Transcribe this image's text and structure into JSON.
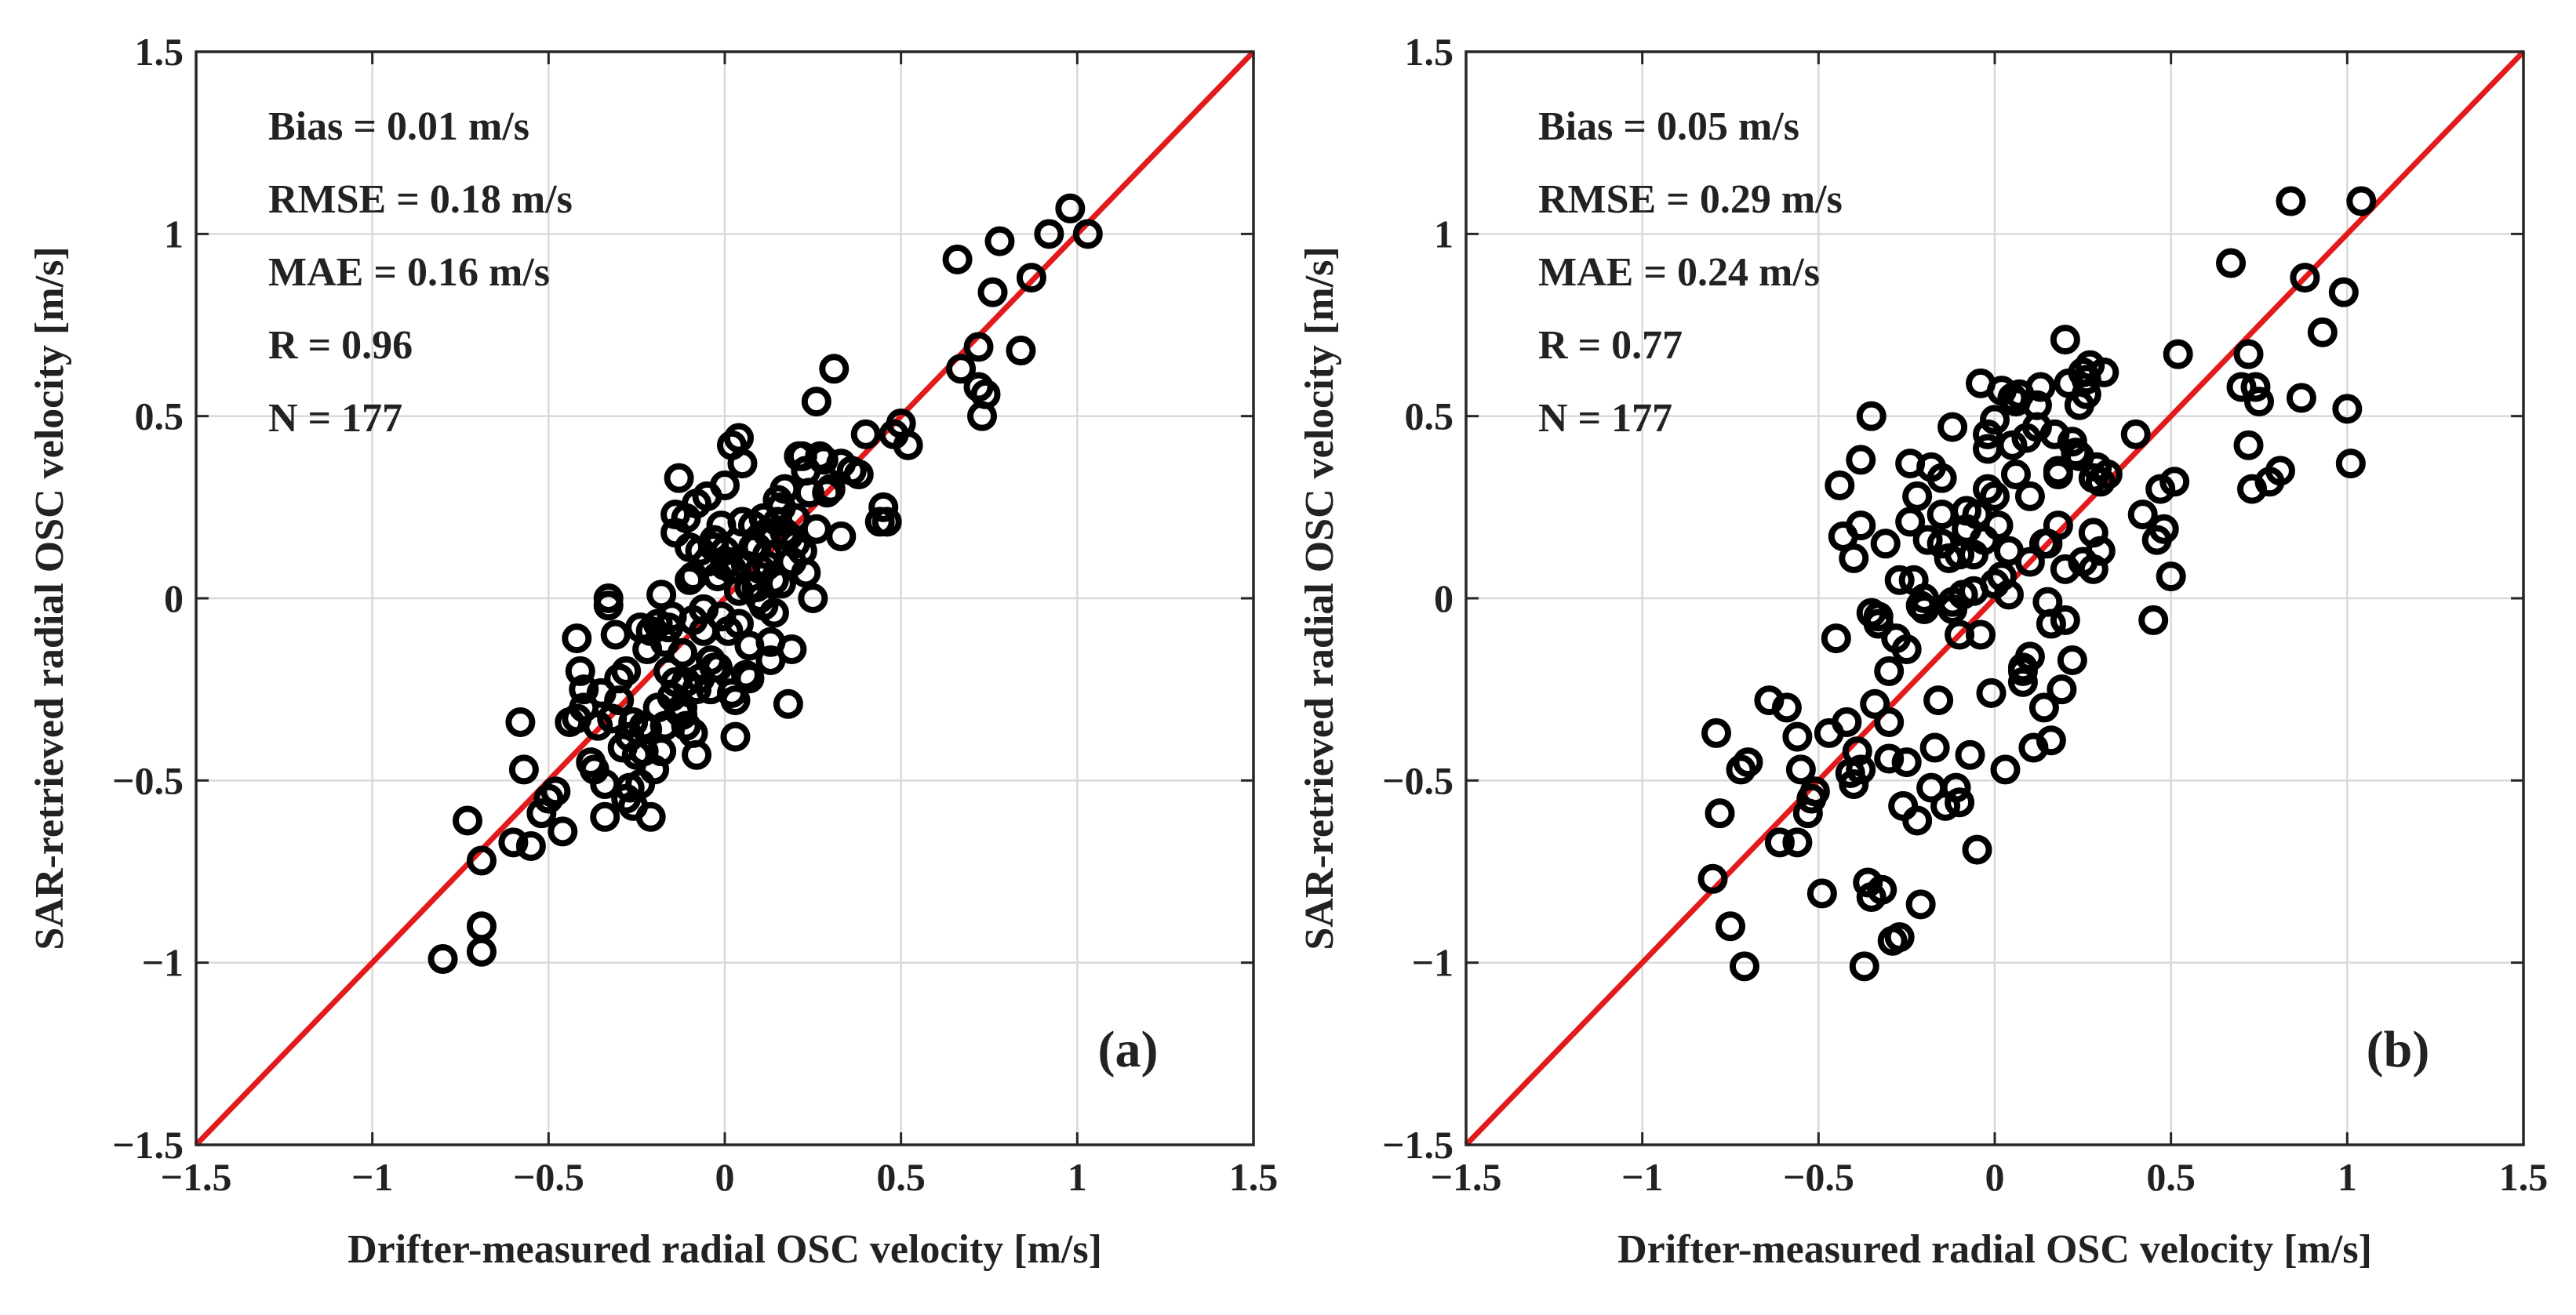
{
  "colors": {
    "reference_line": "#e31a1c",
    "marker": "#000000",
    "grid": "#d9d9d9",
    "axes": "#262626"
  },
  "chart_data": [
    {
      "type": "scatter",
      "panel_label": "(a)",
      "xlabel": "Drifter-measured radial OSC velocity [m/s]",
      "ylabel": "SAR-retrieved radial OSC velocity [m/s]",
      "xlim": [
        -1.5,
        1.5
      ],
      "ylim": [
        -1.5,
        1.5
      ],
      "ticks": [
        -1.5,
        -1,
        -0.5,
        0,
        0.5,
        1,
        1.5
      ],
      "tick_labels": [
        "−1.5",
        "−1",
        "−0.5",
        "0",
        "0.5",
        "1",
        "1.5"
      ],
      "grid": true,
      "reference_line": "y = x",
      "stats": [
        "Bias = 0.01 m/s",
        "RMSE = 0.18 m/s",
        "MAE = 0.16 m/s",
        "R = 0.96",
        "N = 177"
      ],
      "x": [
        -0.8,
        -0.73,
        -0.69,
        -0.69,
        -0.69,
        -0.6,
        -0.57,
        -0.58,
        -0.55,
        -0.52,
        -0.5,
        -0.48,
        -0.46,
        -0.42,
        -0.41,
        -0.42,
        -0.4,
        -0.38,
        -0.36,
        -0.34,
        -0.34,
        -0.33,
        -0.31,
        -0.3,
        -0.29,
        -0.27,
        -0.26,
        -0.25,
        -0.23,
        -0.22,
        -0.21,
        -0.2,
        -0.19,
        -0.18,
        -0.17,
        -0.16,
        -0.15,
        -0.14,
        -0.14,
        -0.13,
        -0.12,
        -0.12,
        -0.11,
        -0.1,
        -0.09,
        -0.09,
        -0.08,
        -0.07,
        -0.06,
        -0.05,
        -0.04,
        -0.03,
        -0.02,
        -0.01,
        0.0,
        0.01,
        0.02,
        0.03,
        0.04,
        0.05,
        0.06,
        0.07,
        0.08,
        0.09,
        0.1,
        0.11,
        0.12,
        0.13,
        0.14,
        0.15,
        0.16,
        0.17,
        0.18,
        0.19,
        0.2,
        0.22,
        0.23,
        0.25,
        0.26,
        0.27,
        0.29,
        0.31,
        0.33,
        0.38,
        0.4,
        0.45,
        0.46,
        0.48,
        0.5,
        0.52,
        0.66,
        0.67,
        0.72,
        0.72,
        0.73,
        0.74,
        0.76,
        0.78,
        0.84,
        0.87,
        0.92,
        0.98,
        1.03,
        -0.33,
        -0.32,
        -0.28,
        -0.27,
        -0.24,
        -0.23,
        -0.22,
        -0.19,
        -0.17,
        -0.16,
        -0.14,
        -0.12,
        -0.11,
        -0.1,
        -0.09,
        -0.08,
        -0.07,
        -0.06,
        -0.05,
        -0.04,
        -0.03,
        -0.02,
        -0.01,
        0.0,
        0.01,
        0.02,
        0.03,
        0.04,
        0.05,
        0.06,
        0.07,
        0.08,
        0.1,
        0.11,
        0.12,
        0.13,
        0.15,
        0.16,
        0.18,
        0.2,
        0.21,
        0.22,
        0.23,
        0.24,
        0.26,
        0.28,
        0.3,
        0.33,
        0.36,
        0.44,
        -0.44,
        -0.4,
        -0.37,
        -0.35,
        -0.3,
        -0.28,
        -0.26,
        -0.24,
        -0.21,
        -0.18,
        -0.15,
        -0.13,
        -0.11,
        -0.08,
        -0.06,
        -0.03,
        0.0,
        0.02,
        0.04,
        0.07,
        0.09,
        0.12,
        0.14,
        0.17,
        0.19
      ],
      "y": [
        -0.99,
        -0.61,
        -0.72,
        -0.9,
        -0.97,
        -0.67,
        -0.47,
        -0.34,
        -0.68,
        -0.59,
        -0.55,
        -0.53,
        -0.64,
        -0.11,
        -0.2,
        -0.33,
        -0.25,
        -0.45,
        -0.35,
        -0.51,
        -0.6,
        -0.02,
        -0.1,
        -0.22,
        -0.41,
        -0.38,
        -0.57,
        -0.43,
        -0.35,
        -0.14,
        -0.6,
        -0.47,
        -0.3,
        0.01,
        -0.12,
        -0.2,
        -0.27,
        0.23,
        0.18,
        0.33,
        -0.32,
        -0.15,
        -0.23,
        0.05,
        -0.37,
        -0.06,
        -0.43,
        0.13,
        -0.03,
        0.28,
        -0.25,
        0.14,
        -0.19,
        0.2,
        0.31,
        0.1,
        0.42,
        -0.28,
        -0.07,
        0.37,
        0.09,
        -0.13,
        0.2,
        0.03,
        0.08,
        -0.02,
        0.18,
        -0.12,
        0.05,
        0.21,
        0.25,
        0.3,
        -0.29,
        0.1,
        0.15,
        0.39,
        0.35,
        0.0,
        0.54,
        0.39,
        0.29,
        0.63,
        0.37,
        0.34,
        0.45,
        0.25,
        0.21,
        0.45,
        0.48,
        0.42,
        0.93,
        0.63,
        0.69,
        0.58,
        0.5,
        0.56,
        0.84,
        0.98,
        0.68,
        0.88,
        1.0,
        1.07,
        1.0,
        0.0,
        -0.33,
        -0.2,
        -0.52,
        -0.08,
        -0.42,
        -0.36,
        -0.07,
        -0.35,
        -0.08,
        -0.23,
        -0.3,
        0.22,
        0.14,
        0.06,
        0.26,
        -0.22,
        -0.03,
        0.1,
        -0.17,
        0.16,
        0.06,
        -0.05,
        0.13,
        -0.09,
        0.08,
        -0.38,
        0.44,
        0.21,
        -0.21,
        0.03,
        0.14,
        0.0,
        0.22,
        0.12,
        -0.17,
        0.27,
        0.04,
        0.17,
        0.22,
        0.39,
        0.13,
        0.07,
        0.29,
        0.19,
        0.38,
        0.3,
        0.17,
        0.35,
        0.21,
        -0.34,
        -0.3,
        -0.47,
        -0.26,
        -0.28,
        -0.55,
        -0.34,
        -0.51,
        -0.09,
        -0.42,
        -0.05,
        -0.31,
        -0.35,
        -0.25,
        -0.09,
        -0.19,
        0.09,
        -0.26,
        0.02,
        -0.22,
        0.14,
        0.09,
        -0.04,
        0.18,
        -0.14
      ]
    },
    {
      "type": "scatter",
      "panel_label": "(b)",
      "xlabel": "Drifter-measured radial OSC velocity [m/s]",
      "ylabel": "SAR-retrieved radial OSC velocity [m/s]",
      "xlim": [
        -1.5,
        1.5
      ],
      "ylim": [
        -1.5,
        1.5
      ],
      "ticks": [
        -1.5,
        -1,
        -0.5,
        0,
        0.5,
        1,
        1.5
      ],
      "tick_labels": [
        "−1.5",
        "−1",
        "−0.5",
        "0",
        "0.5",
        "1",
        "1.5"
      ],
      "grid": true,
      "reference_line": "y = x",
      "stats": [
        "Bias = 0.05 m/s",
        "RMSE = 0.29 m/s",
        "MAE = 0.24 m/s",
        "R = 0.77",
        "N = 177"
      ],
      "x": [
        -0.8,
        -0.79,
        -0.78,
        -0.75,
        -0.72,
        -0.71,
        -0.7,
        -0.64,
        -0.61,
        -0.59,
        -0.56,
        -0.56,
        -0.55,
        -0.53,
        -0.52,
        -0.51,
        -0.49,
        -0.47,
        -0.45,
        -0.44,
        -0.43,
        -0.42,
        -0.41,
        -0.4,
        -0.39,
        -0.38,
        -0.38,
        -0.37,
        -0.36,
        -0.35,
        -0.35,
        -0.34,
        -0.33,
        -0.32,
        -0.31,
        -0.3,
        -0.29,
        -0.28,
        -0.27,
        -0.26,
        -0.25,
        -0.24,
        -0.23,
        -0.22,
        -0.21,
        -0.2,
        -0.19,
        -0.18,
        -0.17,
        -0.16,
        -0.15,
        -0.14,
        -0.13,
        -0.12,
        -0.11,
        -0.1,
        -0.09,
        -0.08,
        -0.07,
        -0.06,
        -0.05,
        -0.04,
        -0.03,
        -0.02,
        -0.01,
        0.0,
        0.01,
        0.02,
        0.03,
        0.04,
        0.05,
        0.06,
        0.07,
        0.08,
        0.09,
        0.1,
        0.11,
        0.12,
        0.13,
        0.14,
        0.15,
        0.16,
        0.17,
        0.18,
        0.19,
        0.2,
        0.21,
        0.22,
        0.23,
        0.24,
        0.25,
        0.26,
        0.27,
        0.28,
        0.29,
        0.3,
        0.31,
        0.32,
        0.4,
        0.42,
        0.45,
        0.46,
        0.47,
        0.48,
        0.5,
        0.51,
        0.52,
        0.67,
        0.7,
        0.72,
        0.72,
        0.73,
        0.74,
        0.75,
        0.78,
        0.81,
        0.84,
        0.87,
        0.88,
        0.93,
        0.99,
        1.0,
        1.01,
        1.04,
        -0.42,
        -0.4,
        -0.38,
        -0.35,
        -0.33,
        -0.3,
        -0.27,
        -0.24,
        -0.21,
        -0.18,
        -0.15,
        -0.12,
        -0.1,
        -0.08,
        -0.06,
        -0.04,
        -0.02,
        0.0,
        0.02,
        0.04,
        0.06,
        0.08,
        0.1,
        0.12,
        0.14,
        0.16,
        0.18,
        0.2,
        0.22,
        0.24,
        0.26,
        0.28,
        -0.25,
        -0.2,
        -0.15,
        -0.1,
        -0.05,
        0.0,
        0.05,
        0.1,
        0.15,
        0.2,
        0.25,
        0.3,
        -0.3,
        -0.22,
        -0.12,
        -0.02,
        0.08,
        0.18,
        0.28
      ],
      "y": [
        -0.77,
        -0.37,
        -0.59,
        -0.9,
        -0.47,
        -1.01,
        -0.45,
        -0.28,
        -0.67,
        -0.3,
        -0.38,
        -0.67,
        -0.47,
        -0.59,
        -0.55,
        -0.53,
        -0.81,
        -0.37,
        -0.11,
        0.31,
        0.17,
        -0.34,
        -0.48,
        -0.51,
        -0.42,
        0.38,
        0.2,
        -1.01,
        -0.78,
        -0.04,
        0.5,
        -0.29,
        -0.07,
        -0.8,
        0.15,
        -0.2,
        -0.94,
        -0.11,
        -0.93,
        -0.57,
        -0.45,
        0.37,
        0.05,
        0.28,
        -0.84,
        0.0,
        0.16,
        -0.52,
        -0.41,
        -0.28,
        0.23,
        -0.57,
        0.11,
        0.47,
        -0.52,
        -0.1,
        0.01,
        0.24,
        -0.43,
        0.12,
        -0.69,
        0.59,
        0.16,
        0.45,
        -0.26,
        0.04,
        0.2,
        0.57,
        -0.47,
        0.01,
        0.42,
        0.54,
        0.56,
        -0.2,
        0.44,
        0.28,
        -0.41,
        0.47,
        0.58,
        -0.3,
        0.15,
        -0.07,
        0.45,
        0.2,
        -0.25,
        0.71,
        0.59,
        0.43,
        0.4,
        0.53,
        0.1,
        0.6,
        0.64,
        0.33,
        0.36,
        0.13,
        0.62,
        0.34,
        0.45,
        0.23,
        -0.06,
        0.16,
        0.3,
        0.19,
        0.06,
        0.32,
        0.67,
        0.92,
        0.58,
        0.67,
        0.42,
        0.3,
        0.58,
        0.54,
        0.32,
        0.35,
        1.09,
        0.55,
        0.88,
        0.73,
        0.84,
        0.52,
        0.37,
        1.09,
        -0.34,
        0.11,
        -0.47,
        -0.82,
        -0.05,
        -0.34,
        0.05,
        0.21,
        -0.02,
        0.36,
        0.33,
        -0.03,
        0.12,
        0.19,
        0.02,
        -0.1,
        0.3,
        0.49,
        0.06,
        0.13,
        0.34,
        -0.19,
        0.1,
        0.53,
        0.15,
        -0.39,
        0.35,
        -0.06,
        -0.17,
        0.39,
        0.56,
        0.18,
        -0.14,
        -0.03,
        0.15,
        -0.56,
        0.23,
        0.28,
        0.55,
        -0.16,
        -0.01,
        0.08,
        0.62,
        0.32,
        -0.44,
        -0.61,
        -0.01,
        0.41,
        -0.23,
        0.34,
        0.08
      ]
    }
  ]
}
